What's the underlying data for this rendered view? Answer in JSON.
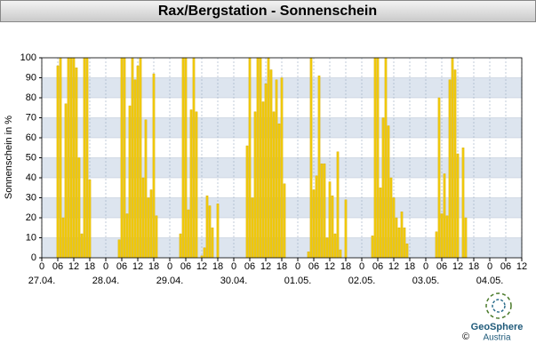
{
  "chart_data": {
    "type": "bar",
    "title": "Rax/Bergstation - Sonnenschein",
    "y_label": "Sonnenschein in %",
    "x": [
      6,
      7,
      8,
      9,
      10,
      11,
      12,
      13,
      14,
      15,
      16,
      17,
      18,
      29,
      30,
      31,
      32,
      33,
      34,
      35,
      36,
      37,
      38,
      39,
      40,
      41,
      42,
      43,
      52,
      53,
      54,
      55,
      56,
      57,
      58,
      60,
      61,
      62,
      63,
      64,
      66,
      77,
      78,
      79,
      80,
      81,
      82,
      83,
      84,
      85,
      86,
      87,
      88,
      89,
      90,
      91,
      100,
      101,
      102,
      103,
      104,
      105,
      106,
      107,
      108,
      109,
      110,
      111,
      112,
      114,
      124,
      125,
      126,
      127,
      128,
      129,
      130,
      131,
      132,
      133,
      134,
      135,
      136,
      137,
      148,
      149,
      150,
      151,
      152,
      153,
      154,
      155,
      156,
      158,
      159
    ],
    "values": [
      96,
      100,
      20,
      77,
      100,
      100,
      100,
      95,
      50,
      12,
      100,
      100,
      39,
      9,
      100,
      100,
      22,
      76,
      100,
      89,
      96,
      100,
      40,
      69,
      30,
      34,
      92,
      21,
      12,
      100,
      100,
      24,
      74,
      100,
      73,
      1,
      5,
      31,
      26,
      15,
      27,
      56,
      100,
      30,
      73,
      100,
      100,
      78,
      87,
      100,
      94,
      73,
      89,
      67,
      90,
      37,
      3,
      100,
      34,
      41,
      91,
      47,
      47,
      10,
      38,
      31,
      12,
      53,
      4,
      29,
      11,
      100,
      100,
      35,
      70,
      100,
      66,
      40,
      30,
      20,
      15,
      23,
      15,
      7,
      13,
      80,
      22,
      42,
      21,
      89,
      100,
      94,
      52,
      55,
      20
    ],
    "color": "#f2cc0c",
    "xlim": [
      0,
      180
    ],
    "xticks": [
      {
        "value": 0,
        "label": "0"
      },
      {
        "value": 6,
        "label": "06"
      },
      {
        "value": 12,
        "label": "12"
      },
      {
        "value": 18,
        "label": "18"
      },
      {
        "value": 24,
        "label": "0"
      },
      {
        "value": 30,
        "label": "06"
      },
      {
        "value": 36,
        "label": "12"
      },
      {
        "value": 42,
        "label": "18"
      },
      {
        "value": 48,
        "label": "0"
      },
      {
        "value": 54,
        "label": "06"
      },
      {
        "value": 60,
        "label": "12"
      },
      {
        "value": 66,
        "label": "18"
      },
      {
        "value": 72,
        "label": "0"
      },
      {
        "value": 78,
        "label": "06"
      },
      {
        "value": 84,
        "label": "12"
      },
      {
        "value": 90,
        "label": "18"
      },
      {
        "value": 96,
        "label": "0"
      },
      {
        "value": 102,
        "label": "06"
      },
      {
        "value": 108,
        "label": "12"
      },
      {
        "value": 114,
        "label": "18"
      },
      {
        "value": 120,
        "label": "0"
      },
      {
        "value": 126,
        "label": "06"
      },
      {
        "value": 132,
        "label": "12"
      },
      {
        "value": 138,
        "label": "18"
      },
      {
        "value": 144,
        "label": "0"
      },
      {
        "value": 150,
        "label": "06"
      },
      {
        "value": 156,
        "label": "12"
      },
      {
        "value": 162,
        "label": "18"
      },
      {
        "value": 168,
        "label": "0"
      },
      {
        "value": 174,
        "label": "06"
      },
      {
        "value": 180,
        "label": "12"
      }
    ],
    "dates": [
      {
        "value": 0,
        "label": "27.04."
      },
      {
        "value": 24,
        "label": "28.04."
      },
      {
        "value": 48,
        "label": "29.04."
      },
      {
        "value": 72,
        "label": "30.04."
      },
      {
        "value": 96,
        "label": "01.05."
      },
      {
        "value": 120,
        "label": "02.05."
      },
      {
        "value": 144,
        "label": "03.05."
      },
      {
        "value": 168,
        "label": "04.05."
      }
    ],
    "ylim": [
      0,
      100
    ],
    "yticks": [
      0,
      10,
      20,
      30,
      40,
      50,
      60,
      70,
      80,
      90,
      100
    ],
    "grid": true,
    "copyright": "©",
    "logo_name": "GeoSphere",
    "logo_sub": "Austria"
  }
}
